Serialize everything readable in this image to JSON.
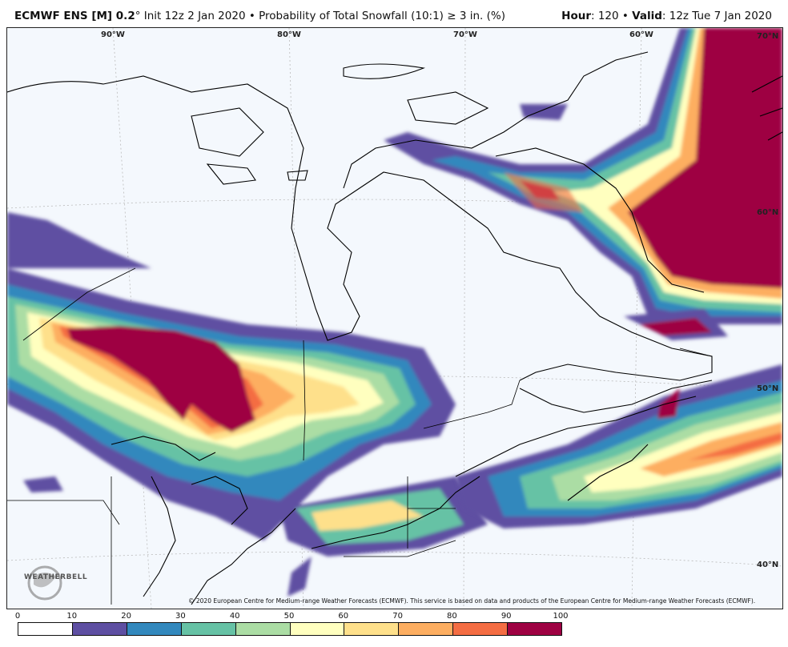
{
  "header": {
    "model": "ECMWF ENS [M] 0.2",
    "degree": "°",
    "init": " Init 12z 2 Jan 2020",
    "bullet": " • ",
    "product": "Probability of Total Snowfall (10:1) ≥ 3 in. (%)",
    "hour_label": "Hour",
    "hour_value": ": 120",
    "valid_label": "Valid",
    "valid_value": ": 12z Tue 7 Jan 2020"
  },
  "map": {
    "lon_labels": [
      "90°W",
      "80°W",
      "70°W",
      "60°W",
      "70°N"
    ],
    "lat_labels": [
      "60°N",
      "50°N",
      "40°N"
    ],
    "copyright": "© 2020 European Centre for Medium-range Weather Forecasts (ECMWF). This service is based on data and products of the European Centre for Medium-range Weather Forecasts (ECMWF).",
    "logo_text": "WEATHERBELL"
  },
  "colorbar": {
    "ticks": [
      "0",
      "10",
      "20",
      "30",
      "40",
      "50",
      "60",
      "70",
      "80",
      "90",
      "100"
    ],
    "colors": [
      "#ffffff",
      "#5e4fa2",
      "#3288bd",
      "#66c2a5",
      "#abdda4",
      "#ffffbf",
      "#fee08b",
      "#fdae61",
      "#f46d43",
      "#9e0142"
    ]
  }
}
